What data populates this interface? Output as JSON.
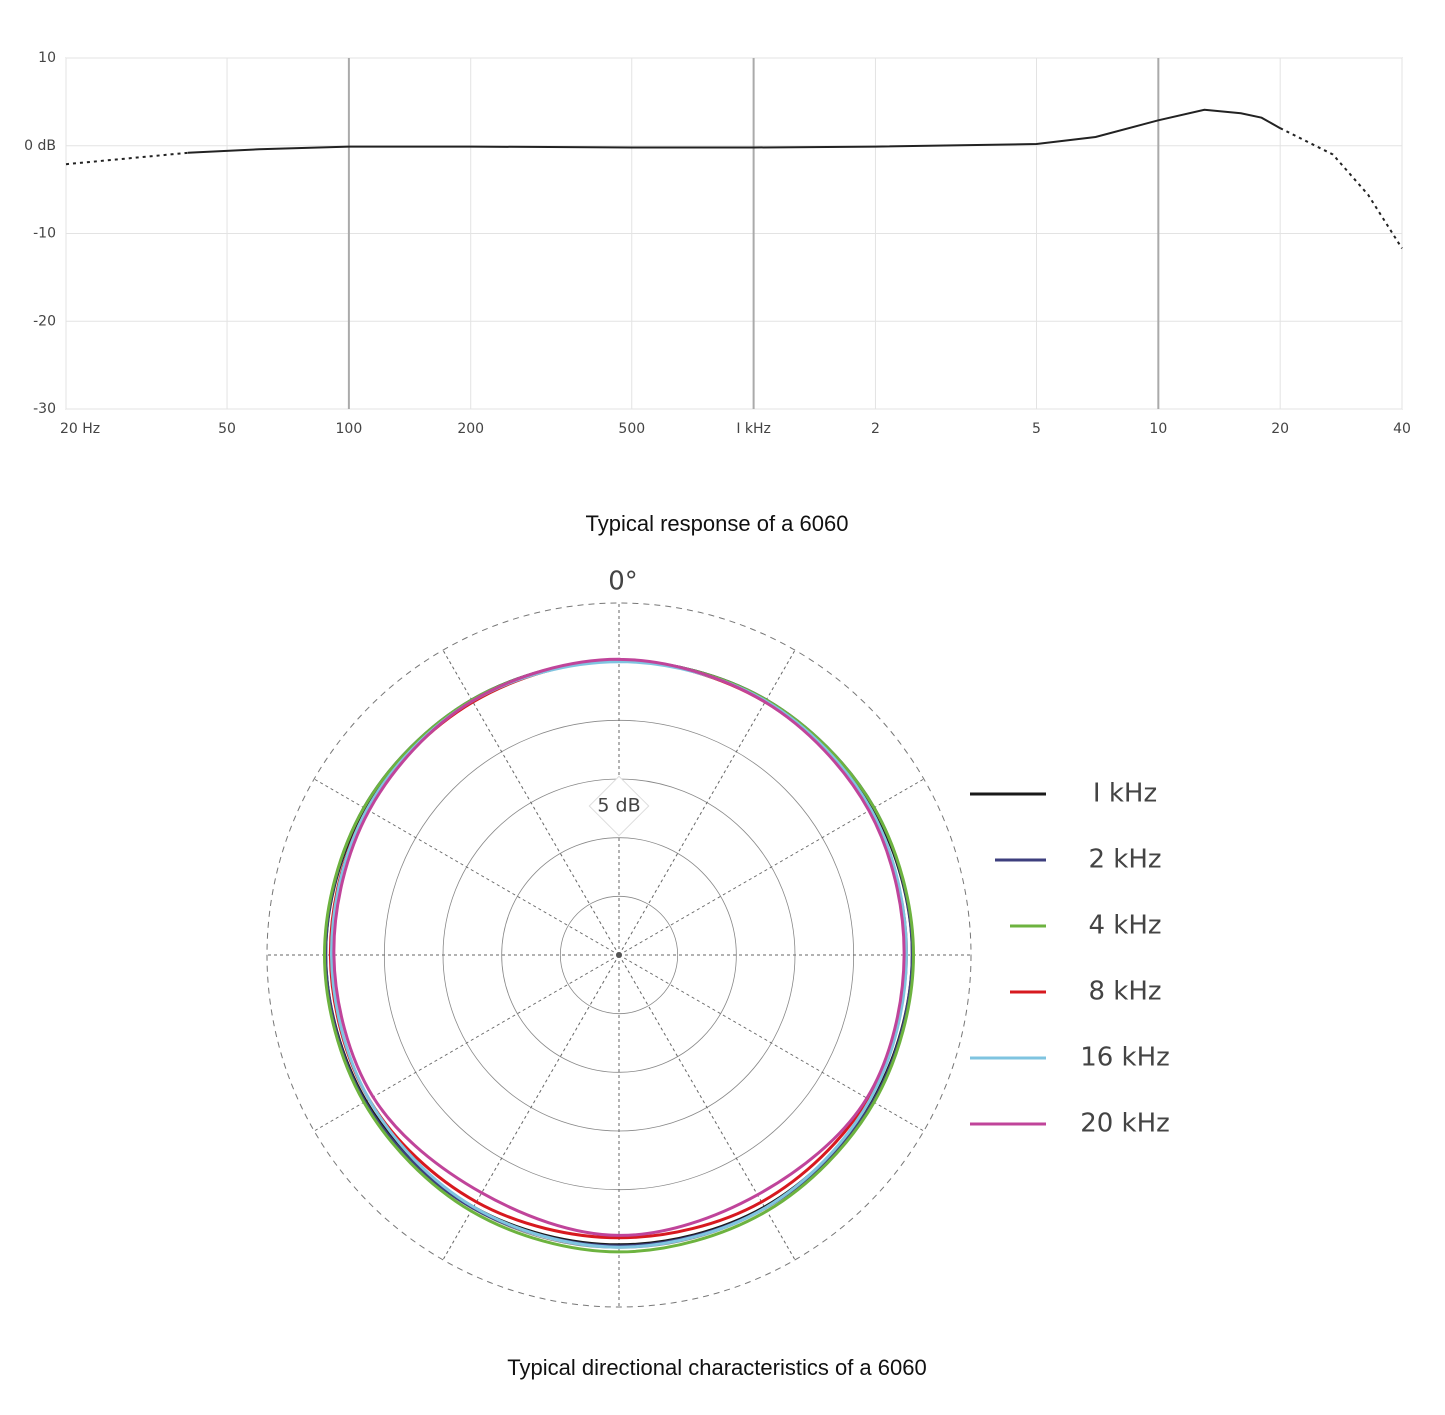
{
  "chart_data": [
    {
      "type": "line",
      "caption": "Typical response of a 6060",
      "log_x": true,
      "xlim": [
        20,
        40000
      ],
      "ylim": [
        -30,
        10
      ],
      "xticks": [
        {
          "value": 20,
          "label": "20 Hz"
        },
        50,
        100,
        200,
        500,
        {
          "value": 1000,
          "label": "I kHz"
        },
        {
          "value": 2000,
          "label": "2"
        },
        {
          "value": 5000,
          "label": "5"
        },
        {
          "value": 10000,
          "label": "10"
        },
        {
          "value": 20000,
          "label": "20"
        },
        {
          "value": 40000,
          "label": "40"
        }
      ],
      "yticks": [
        10,
        {
          "value": 0,
          "label": "0 dB"
        },
        -10,
        -20,
        -30
      ],
      "grid": true,
      "series": [
        {
          "color": "#222222",
          "style": "dotted",
          "x": [
            20,
            40
          ],
          "values": [
            -2.1,
            -0.8
          ]
        },
        {
          "color": "#222222",
          "style": "solid",
          "x": [
            40,
            60,
            100,
            200,
            500,
            1000,
            2000,
            5000,
            7000,
            10000,
            13000,
            16000,
            18000,
            20000
          ],
          "values": [
            -0.8,
            -0.4,
            -0.1,
            -0.1,
            -0.2,
            -0.2,
            -0.1,
            0.2,
            1.0,
            2.9,
            4.1,
            3.7,
            3.2,
            2.0
          ]
        },
        {
          "color": "#222222",
          "style": "dotted",
          "x": [
            20000,
            27000,
            33000,
            40000
          ],
          "values": [
            2.0,
            -1.0,
            -5.6,
            -11.7
          ]
        }
      ]
    },
    {
      "type": "polar",
      "caption": "Typical directional characteristics of a 6060",
      "angle_label": "0°",
      "scale_label": "5 dB",
      "rlim": [
        -30,
        0
      ],
      "rticks": [
        -25,
        -20,
        -15,
        -10,
        -5
      ],
      "theta": [
        0,
        30,
        60,
        90,
        120,
        150,
        180,
        210,
        240,
        270,
        300,
        330
      ],
      "thetaticks": [
        0,
        30,
        60,
        90,
        120,
        150,
        180,
        210,
        240,
        270,
        300,
        330
      ],
      "series": [
        {
          "name": "I kHz",
          "color": "#1a1a1a",
          "values": [
            -4.9,
            -4.9,
            -5.0,
            -5.0,
            -5.1,
            -5.2,
            -5.3,
            -5.2,
            -5.1,
            -5.0,
            -5.0,
            -4.9
          ]
        },
        {
          "name": "2 kHz",
          "color": "#3d3f7e",
          "values": [
            -4.9,
            -4.9,
            -4.9,
            -5.0,
            -5.0,
            -5.1,
            -5.2,
            -5.1,
            -5.0,
            -5.0,
            -4.9,
            -4.9
          ]
        },
        {
          "name": "4 kHz",
          "color": "#6db33f",
          "values": [
            -4.9,
            -4.9,
            -4.9,
            -4.9,
            -4.9,
            -4.8,
            -4.7,
            -4.8,
            -4.9,
            -4.9,
            -4.9,
            -4.9
          ]
        },
        {
          "name": "8 kHz",
          "color": "#d7191f",
          "values": [
            -4.9,
            -5.1,
            -5.3,
            -5.5,
            -5.5,
            -5.7,
            -5.9,
            -5.7,
            -5.4,
            -5.4,
            -5.2,
            -5.1
          ]
        },
        {
          "name": "16 kHz",
          "color": "#7fc4e0",
          "values": [
            -5.0,
            -5.0,
            -5.2,
            -5.5,
            -5.3,
            -5.1,
            -5.1,
            -5.2,
            -5.4,
            -5.5,
            -5.2,
            -5.0
          ]
        },
        {
          "name": "20 kHz",
          "color": "#c0449a",
          "values": [
            -4.8,
            -5.1,
            -5.4,
            -5.7,
            -5.6,
            -6.4,
            -6.1,
            -6.6,
            -5.8,
            -5.7,
            -5.4,
            -5.0
          ]
        }
      ]
    }
  ]
}
